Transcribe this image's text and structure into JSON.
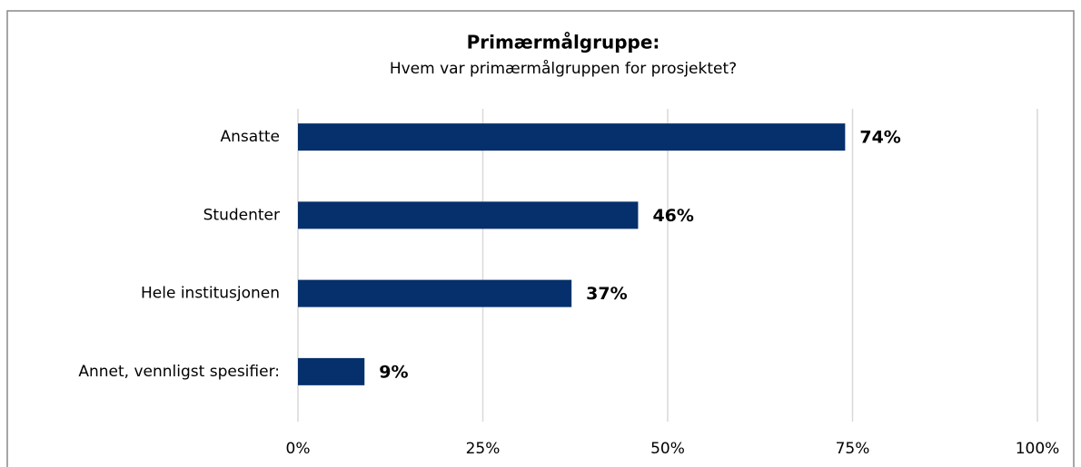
{
  "chart_data": {
    "type": "hbar",
    "title": "Primærmålgruppe:",
    "subtitle": "Hvem var primærmålgruppen for prosjektet?",
    "categories": [
      "Ansatte",
      "Studenter",
      "Hele institusjonen",
      "Annet, vennligst spesifier:"
    ],
    "values": [
      74,
      46,
      37,
      9
    ],
    "value_labels": [
      "74%",
      "46%",
      "37%",
      "9%"
    ],
    "color": "#06306b",
    "xlim": [
      0,
      100
    ],
    "xticks": [
      {
        "value": 0,
        "label": "0%"
      },
      {
        "value": 25,
        "label": "25%"
      },
      {
        "value": 50,
        "label": "50%"
      },
      {
        "value": 75,
        "label": "75%"
      },
      {
        "value": 100,
        "label": "100%"
      }
    ],
    "grid": true
  }
}
